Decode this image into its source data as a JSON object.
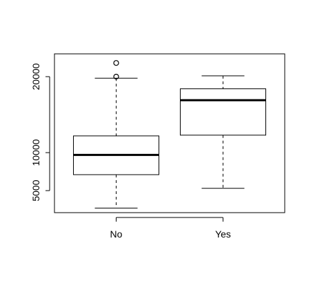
{
  "chart_data": {
    "type": "boxplot",
    "title": "",
    "xlabel": "",
    "ylabel": "",
    "categories": [
      "No",
      "Yes"
    ],
    "ylim": [
      2100,
      23000
    ],
    "yticks": [
      5000,
      10000,
      20000
    ],
    "ytick_labels": [
      "5000",
      "10000",
      "20000"
    ],
    "grid": false,
    "boxes": [
      {
        "category": "No",
        "whisker_low": 2700,
        "q1": 7100,
        "median": 9700,
        "q3": 12200,
        "whisker_high": 19800,
        "outliers": [
          20000,
          21800
        ]
      },
      {
        "category": "Yes",
        "whisker_low": 5300,
        "q1": 12300,
        "median": 16900,
        "q3": 18400,
        "whisker_high": 20100,
        "outliers": []
      }
    ]
  }
}
